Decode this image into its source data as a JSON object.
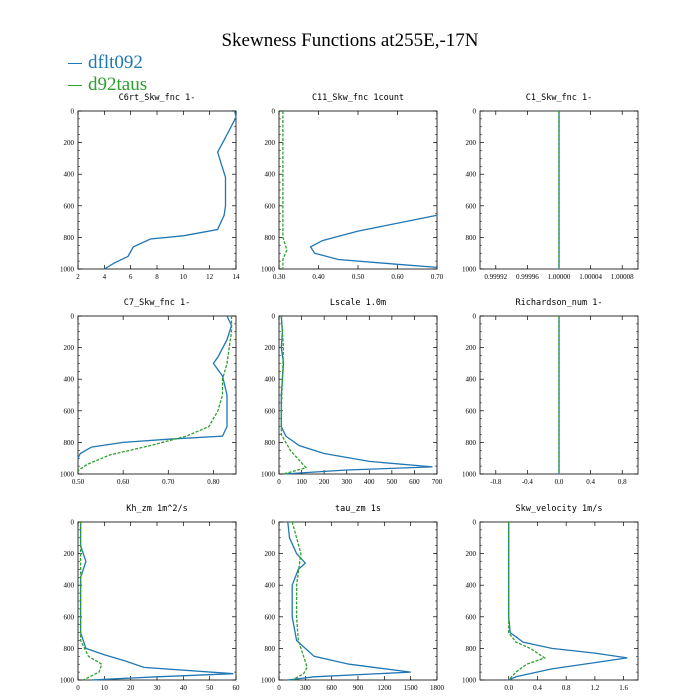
{
  "title": "Skewness Functions at255E,-17N",
  "colors": {
    "dflt092": "#1f77b4",
    "d92taus": "#2ca02c"
  },
  "legend": [
    {
      "label": "dflt092",
      "color": "#1f77b4",
      "style": "solid"
    },
    {
      "label": "d92taus",
      "color": "#2ca02c",
      "style": "dashed"
    }
  ],
  "chart_data": [
    {
      "type": "line",
      "title": "C6rt_Skw_fnc   1-",
      "xlim": [
        2,
        14
      ],
      "ylim": [
        0,
        1000
      ],
      "y_inverted": true,
      "xticks": [
        2,
        4,
        6,
        8,
        10,
        12,
        14
      ],
      "xtick_labels": [
        "2",
        "4",
        "6",
        "8",
        "10",
        "12",
        "14"
      ],
      "yticks": [
        0,
        200,
        400,
        600,
        800,
        1000
      ],
      "series": [
        {
          "name": "dflt092",
          "points": [
            [
              13.9,
              0
            ],
            [
              14,
              40
            ],
            [
              13.5,
              120
            ],
            [
              13,
              200
            ],
            [
              12.6,
              260
            ],
            [
              12.9,
              340
            ],
            [
              13.2,
              420
            ],
            [
              13.2,
              600
            ],
            [
              13.1,
              660
            ],
            [
              12.6,
              750
            ],
            [
              10,
              790
            ],
            [
              7.5,
              810
            ],
            [
              6.2,
              860
            ],
            [
              5.8,
              920
            ],
            [
              4.8,
              960
            ],
            [
              4,
              1000
            ]
          ]
        },
        {
          "name": "d92taus",
          "points": []
        }
      ]
    },
    {
      "type": "line",
      "title": "C11_Skw_fnc   1count",
      "xlim": [
        0.3,
        0.7
      ],
      "ylim": [
        0,
        1000
      ],
      "y_inverted": true,
      "xticks": [
        0.3,
        0.4,
        0.5,
        0.6,
        0.7
      ],
      "xtick_labels": [
        "0.30",
        "0.40",
        "0.50",
        "0.60",
        "0.70"
      ],
      "yticks": [
        0,
        200,
        400,
        600,
        800,
        1000
      ],
      "series": [
        {
          "name": "dflt092",
          "points": [
            [
              0.7,
              660
            ],
            [
              0.62,
              700
            ],
            [
              0.5,
              760
            ],
            [
              0.41,
              820
            ],
            [
              0.38,
              860
            ],
            [
              0.39,
              900
            ],
            [
              0.45,
              940
            ],
            [
              0.6,
              970
            ],
            [
              0.7,
              990
            ]
          ]
        },
        {
          "name": "d92taus",
          "points": [
            [
              0.31,
              0
            ],
            [
              0.31,
              200
            ],
            [
              0.31,
              400
            ],
            [
              0.31,
              600
            ],
            [
              0.31,
              800
            ],
            [
              0.32,
              880
            ],
            [
              0.31,
              940
            ],
            [
              0.31,
              1000
            ]
          ]
        }
      ]
    },
    {
      "type": "line",
      "title": "C1_Skw_fnc   1-",
      "xlim": [
        0.9999,
        1.0001
      ],
      "ylim": [
        0,
        1000
      ],
      "y_inverted": true,
      "xticks": [
        0.99992,
        0.99996,
        1.0,
        1.00004,
        1.00008
      ],
      "xtick_labels": [
        "0.99992",
        "0.99996",
        "1.00000",
        "1.00004",
        "1.00008"
      ],
      "yticks": [
        0,
        200,
        400,
        600,
        800,
        1000
      ],
      "series": [
        {
          "name": "dflt092",
          "points": [
            [
              1.0,
              0
            ],
            [
              1.0,
              1000
            ]
          ]
        },
        {
          "name": "d92taus",
          "points": [
            [
              1.0,
              0
            ],
            [
              1.0,
              1000
            ]
          ]
        }
      ]
    },
    {
      "type": "line",
      "title": "C7_Skw_fnc   1-",
      "xlim": [
        0.5,
        0.85
      ],
      "ylim": [
        0,
        1000
      ],
      "y_inverted": true,
      "xticks": [
        0.5,
        0.6,
        0.7,
        0.8
      ],
      "xtick_labels": [
        "0.50",
        "0.60",
        "0.70",
        "0.80"
      ],
      "yticks": [
        0,
        200,
        400,
        600,
        800,
        1000
      ],
      "series": [
        {
          "name": "dflt092",
          "points": [
            [
              0.83,
              0
            ],
            [
              0.84,
              60
            ],
            [
              0.83,
              150
            ],
            [
              0.81,
              260
            ],
            [
              0.8,
              300
            ],
            [
              0.82,
              380
            ],
            [
              0.83,
              500
            ],
            [
              0.83,
              700
            ],
            [
              0.82,
              760
            ],
            [
              0.7,
              780
            ],
            [
              0.6,
              800
            ],
            [
              0.53,
              830
            ],
            [
              0.505,
              870
            ],
            [
              0.5,
              900
            ]
          ]
        },
        {
          "name": "d92taus",
          "points": [
            [
              0.84,
              0
            ],
            [
              0.84,
              100
            ],
            [
              0.835,
              200
            ],
            [
              0.83,
              300
            ],
            [
              0.82,
              400
            ],
            [
              0.82,
              500
            ],
            [
              0.81,
              600
            ],
            [
              0.79,
              700
            ],
            [
              0.74,
              760
            ],
            [
              0.66,
              820
            ],
            [
              0.57,
              880
            ],
            [
              0.52,
              940
            ],
            [
              0.5,
              980
            ]
          ]
        }
      ]
    },
    {
      "type": "line",
      "title": "Lscale   1.0m",
      "xlim": [
        0,
        700
      ],
      "ylim": [
        0,
        1000
      ],
      "y_inverted": true,
      "xticks": [
        0,
        100,
        200,
        300,
        400,
        500,
        600,
        700
      ],
      "xtick_labels": [
        "0",
        "100",
        "200",
        "300",
        "400",
        "500",
        "600",
        "700"
      ],
      "yticks": [
        0,
        200,
        400,
        600,
        800,
        1000
      ],
      "series": [
        {
          "name": "dflt092",
          "points": [
            [
              10,
              0
            ],
            [
              15,
              100
            ],
            [
              10,
              200
            ],
            [
              20,
              300
            ],
            [
              15,
              400
            ],
            [
              10,
              500
            ],
            [
              10,
              600
            ],
            [
              10,
              700
            ],
            [
              30,
              760
            ],
            [
              90,
              820
            ],
            [
              200,
              870
            ],
            [
              400,
              920
            ],
            [
              680,
              955
            ],
            [
              300,
              975
            ],
            [
              20,
              1000
            ]
          ]
        },
        {
          "name": "d92taus",
          "points": [
            [
              10,
              0
            ],
            [
              20,
              200
            ],
            [
              15,
              400
            ],
            [
              10,
              600
            ],
            [
              10,
              750
            ],
            [
              50,
              850
            ],
            [
              100,
              930
            ],
            [
              120,
              960
            ],
            [
              20,
              1000
            ]
          ]
        }
      ]
    },
    {
      "type": "line",
      "title": "Richardson_num   1-",
      "xlim": [
        -1,
        1
      ],
      "ylim": [
        0,
        1000
      ],
      "y_inverted": true,
      "xticks": [
        -0.8,
        -0.4,
        0,
        0.4,
        0.8
      ],
      "xtick_labels": [
        "-0.8",
        "-0.4",
        "0.0",
        "0.4",
        "0.8"
      ],
      "yticks": [
        0,
        200,
        400,
        600,
        800,
        1000
      ],
      "series": [
        {
          "name": "dflt092",
          "points": [
            [
              0,
              0
            ],
            [
              0,
              1000
            ]
          ]
        },
        {
          "name": "d92taus",
          "points": [
            [
              0,
              0
            ],
            [
              0,
              1000
            ]
          ]
        }
      ]
    },
    {
      "type": "line",
      "title": "Kh_zm   1m^2/s",
      "xlim": [
        0,
        60
      ],
      "ylim": [
        0,
        1000
      ],
      "y_inverted": true,
      "xticks": [
        0,
        10,
        20,
        30,
        40,
        50,
        60
      ],
      "xtick_labels": [
        "0",
        "10",
        "20",
        "30",
        "40",
        "50",
        "60"
      ],
      "yticks": [
        0,
        200,
        400,
        600,
        800,
        1000
      ],
      "series": [
        {
          "name": "dflt092",
          "points": [
            [
              1,
              0
            ],
            [
              1,
              150
            ],
            [
              3,
              250
            ],
            [
              1,
              350
            ],
            [
              1,
              700
            ],
            [
              3,
              800
            ],
            [
              10,
              840
            ],
            [
              18,
              880
            ],
            [
              25,
              920
            ],
            [
              59,
              960
            ],
            [
              30,
              980
            ],
            [
              5,
              1000
            ]
          ]
        },
        {
          "name": "d92taus",
          "points": [
            [
              1,
              0
            ],
            [
              1,
              200
            ],
            [
              1,
              400
            ],
            [
              1,
              600
            ],
            [
              1,
              750
            ],
            [
              4,
              850
            ],
            [
              9,
              900
            ],
            [
              8,
              950
            ],
            [
              2,
              1000
            ]
          ]
        }
      ]
    },
    {
      "type": "line",
      "title": "tau_zm   1s",
      "xlim": [
        0,
        1800
      ],
      "ylim": [
        0,
        1000
      ],
      "y_inverted": true,
      "xticks": [
        0,
        300,
        600,
        900,
        1200,
        1500,
        1800
      ],
      "xtick_labels": [
        "0",
        "300",
        "600",
        "900",
        "1200",
        "1500",
        "1800"
      ],
      "yticks": [
        0,
        200,
        400,
        600,
        800,
        1000
      ],
      "series": [
        {
          "name": "dflt092",
          "points": [
            [
              100,
              0
            ],
            [
              120,
              100
            ],
            [
              200,
              200
            ],
            [
              300,
              260
            ],
            [
              220,
              300
            ],
            [
              150,
              400
            ],
            [
              150,
              600
            ],
            [
              200,
              750
            ],
            [
              400,
              850
            ],
            [
              800,
              900
            ],
            [
              1500,
              950
            ],
            [
              400,
              980
            ],
            [
              100,
              1000
            ]
          ]
        },
        {
          "name": "d92taus",
          "points": [
            [
              150,
              0
            ],
            [
              200,
              100
            ],
            [
              250,
              200
            ],
            [
              200,
              400
            ],
            [
              200,
              600
            ],
            [
              220,
              750
            ],
            [
              280,
              850
            ],
            [
              320,
              920
            ],
            [
              280,
              960
            ],
            [
              150,
              1000
            ]
          ]
        }
      ]
    },
    {
      "type": "line",
      "title": "Skw_velocity   1m/s",
      "xlim": [
        -0.4,
        1.8
      ],
      "ylim": [
        0,
        1000
      ],
      "y_inverted": true,
      "xticks": [
        0,
        0.4,
        0.8,
        1.2,
        1.6
      ],
      "xtick_labels": [
        "0.0",
        "0.4",
        "0.8",
        "1.2",
        "1.6"
      ],
      "yticks": [
        0,
        200,
        400,
        600,
        800,
        1000
      ],
      "series": [
        {
          "name": "dflt092",
          "points": [
            [
              0,
              0
            ],
            [
              0,
              200
            ],
            [
              0,
              400
            ],
            [
              0,
              600
            ],
            [
              0.02,
              700
            ],
            [
              0.2,
              760
            ],
            [
              0.6,
              800
            ],
            [
              1.2,
              830
            ],
            [
              1.65,
              860
            ],
            [
              1.2,
              890
            ],
            [
              0.6,
              930
            ],
            [
              0.1,
              980
            ],
            [
              0,
              1000
            ]
          ]
        },
        {
          "name": "d92taus",
          "points": [
            [
              0,
              0
            ],
            [
              0,
              200
            ],
            [
              0,
              400
            ],
            [
              0,
              600
            ],
            [
              0,
              700
            ],
            [
              0.1,
              760
            ],
            [
              0.3,
              800
            ],
            [
              0.5,
              860
            ],
            [
              0.25,
              900
            ],
            [
              0.1,
              950
            ],
            [
              0,
              1000
            ]
          ]
        }
      ]
    }
  ]
}
